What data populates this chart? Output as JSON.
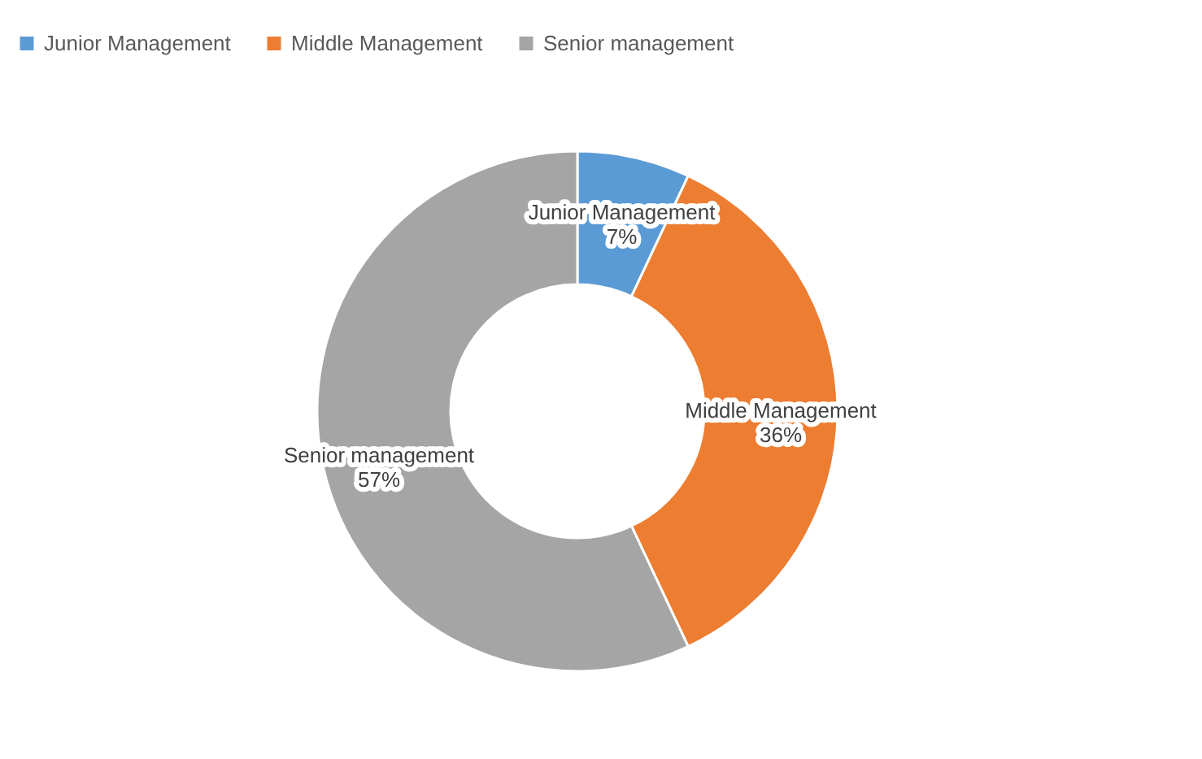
{
  "chart_data": {
    "type": "donut",
    "categories": [
      "Junior Management",
      "Middle Management",
      "Senior management"
    ],
    "values": [
      7,
      36,
      57
    ],
    "colors": [
      "#5b9bd5",
      "#ed7d31",
      "#a5a5a5"
    ],
    "value_labels": [
      "7%",
      "36%",
      "57%"
    ],
    "legend": "top"
  }
}
